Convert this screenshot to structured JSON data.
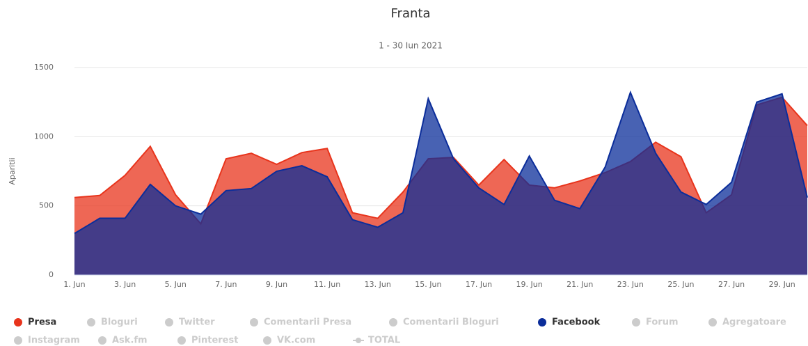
{
  "chart_data": {
    "type": "area",
    "title": "Franta",
    "subtitle": "1 - 30 Iun 2021",
    "y_label": "Aparitii",
    "categories": [
      "1. Jun",
      null,
      "3. Jun",
      null,
      "5. Jun",
      null,
      "7. Jun",
      null,
      "9. Jun",
      null,
      "11. Jun",
      null,
      "13. Jun",
      null,
      "15. Jun",
      null,
      "17. Jun",
      null,
      "19. Jun",
      null,
      "21. Jun",
      null,
      "23. Jun",
      null,
      "25. Jun",
      null,
      "27. Jun",
      null,
      "29. Jun",
      null
    ],
    "series": [
      {
        "name": "Presa",
        "color": "#e8341c",
        "values": [
          560,
          575,
          720,
          930,
          580,
          370,
          840,
          880,
          800,
          885,
          915,
          450,
          410,
          600,
          840,
          850,
          650,
          835,
          650,
          630,
          680,
          740,
          820,
          960,
          855,
          450,
          580,
          1230,
          1285,
          1080
        ]
      },
      {
        "name": "Facebook",
        "color": "#0b2d9a",
        "values": [
          300,
          410,
          410,
          655,
          500,
          440,
          610,
          625,
          750,
          790,
          710,
          400,
          345,
          450,
          1275,
          840,
          630,
          510,
          860,
          540,
          480,
          780,
          1320,
          880,
          600,
          510,
          670,
          1250,
          1310,
          560
        ]
      }
    ],
    "ylim": [
      0,
      1500
    ],
    "yticks": [
      0,
      500,
      1000,
      1500
    ],
    "grid": true,
    "legend": {
      "items": [
        "Presa",
        "Bloguri",
        "Twitter",
        "Comentarii Presa",
        "Comentarii Bloguri",
        "Facebook",
        "Forum",
        "Agregatoare",
        "Instagram",
        "Ask.fm",
        "Pinterest",
        "VK.com",
        "TOTAL"
      ],
      "hidden_color": "#cccccc"
    }
  }
}
